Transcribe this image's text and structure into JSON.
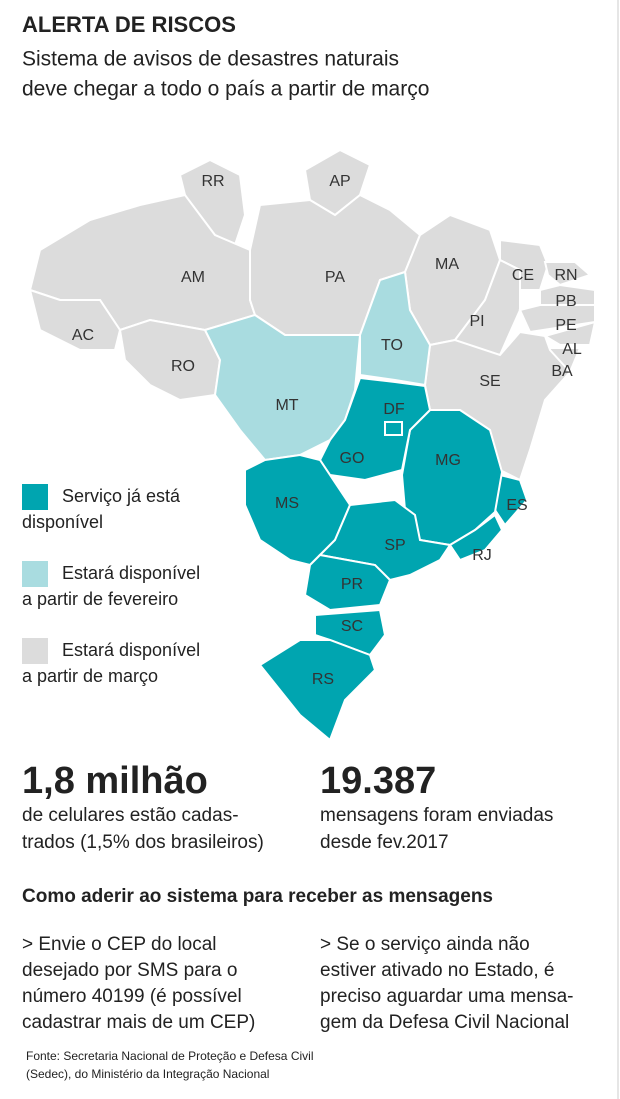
{
  "header": {
    "title": "ALERTA DE RISCOS",
    "subtitle": [
      "Sistema de avisos de desastres naturais",
      "deve chegar a todo o país a partir de março"
    ]
  },
  "legend": {
    "items": [
      {
        "color": "#00a5b0",
        "lines": [
          "Serviço já está",
          "disponível"
        ],
        "states": [
          "ES",
          "MG",
          "GO",
          "DF",
          "MS",
          "SP",
          "RJ",
          "PR",
          "SC",
          "RS"
        ]
      },
      {
        "color": "#a9dce0",
        "lines": [
          "Estará disponível",
          "a partir de fevereiro"
        ],
        "states": [
          "MT",
          "TO"
        ]
      },
      {
        "color": "#dcdcdc",
        "lines": [
          "Estará disponível",
          "a partir de março"
        ],
        "states": [
          "RR",
          "AP",
          "AM",
          "PA",
          "MA",
          "CE",
          "RN",
          "PB",
          "PI",
          "AC",
          "RO",
          "PE",
          "AL",
          "BA",
          "SE"
        ]
      }
    ]
  },
  "stats": [
    {
      "value": "1,8 milhão",
      "lines": [
        "de celulares estão cadas-",
        "trados (1,5% dos brasileiros)"
      ]
    },
    {
      "value": "19.387",
      "lines": [
        "mensagens foram enviadas",
        "desde fev.2017"
      ]
    }
  ],
  "how_to": {
    "heading": "Como aderir ao sistema para receber as mensagens",
    "columns": [
      {
        "lines": [
          "> Envie o CEP do local",
          "desejado por SMS para o",
          "número 40199 (é possível",
          "cadastrar mais de um CEP)"
        ]
      },
      {
        "lines": [
          "> Se o serviço ainda não",
          "estiver ativado no Estado, é",
          "preciso aguardar uma mensa-",
          "gem da Defesa Civil Nacional"
        ]
      }
    ]
  },
  "source": {
    "lines": [
      "Fonte: Secretaria Nacional de Proteção e Defesa Civil",
      "(Sedec), do Ministério da Integração Nacional"
    ]
  }
}
